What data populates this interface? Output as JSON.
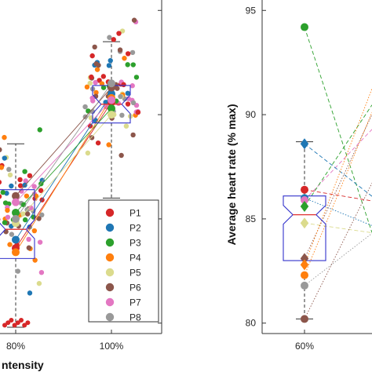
{
  "colors": {
    "P1": "#d62728",
    "P2": "#1f77b4",
    "P3": "#2ca02c",
    "P4": "#ff7f0e",
    "P5": "#dbdb8d",
    "P6": "#8c564b",
    "P7": "#e377c2",
    "P8": "#999999",
    "box": "#3333cc",
    "median": "#e03030",
    "axis": "#333333"
  },
  "chart_data": [
    {
      "type": "scatter",
      "xlabel": "ntensity",
      "ylabel": "",
      "categories": [
        "80%",
        "100%"
      ],
      "legend_position": "bottom-right",
      "legend": [
        "P1",
        "P2",
        "P3",
        "P4",
        "P5",
        "P6",
        "P7",
        "P8"
      ],
      "boxes": [
        {
          "category": "80%",
          "whisker_low": 79.8,
          "q1": 83.1,
          "median": 84.5,
          "q3": 86.4,
          "whisker_high": 88.6
        },
        {
          "category": "100%",
          "whisker_low": 86.0,
          "q1": 89.6,
          "median": 90.5,
          "q3": 91.4,
          "whisker_high": 93.5
        }
      ],
      "outliers": [
        {
          "category": "100%",
          "value": 84.9
        }
      ],
      "participant_means": {
        "P1": [
          83.6,
          90.6
        ],
        "P2": [
          84.0,
          91.0
        ],
        "P3": [
          85.3,
          90.3
        ],
        "P4": [
          83.4,
          90.8
        ],
        "P5": [
          84.8,
          90.0
        ],
        "P6": [
          86.1,
          91.3
        ],
        "P7": [
          85.8,
          90.7
        ],
        "P8": [
          85.0,
          91.5
        ]
      }
    },
    {
      "type": "scatter",
      "ylabel": "Average heart rate (% max)",
      "categories": [
        "60%"
      ],
      "yticks": [
        80,
        85,
        90,
        95
      ],
      "ylim": [
        79.5,
        95.5
      ],
      "box": {
        "category": "60%",
        "whisker_low": 80.2,
        "q1": 83.0,
        "median": 85.2,
        "q3": 86.1,
        "whisker_high": 88.7
      },
      "participant_points": {
        "P1": 86.4,
        "P2": 86.0,
        "P3": 94.2,
        "P4": 82.3,
        "P5": 84.8,
        "P6": 83.1,
        "P7": 85.9,
        "P8": 81.8
      },
      "extra_points": [
        {
          "participant": "P2",
          "value": 88.6,
          "marker": "diamond"
        },
        {
          "participant": "P6",
          "value": 80.2,
          "marker": "circle"
        },
        {
          "participant": "P3",
          "value": 85.6,
          "marker": "diamond"
        },
        {
          "participant": "P4",
          "value": 82.8,
          "marker": "diamond"
        }
      ]
    }
  ]
}
